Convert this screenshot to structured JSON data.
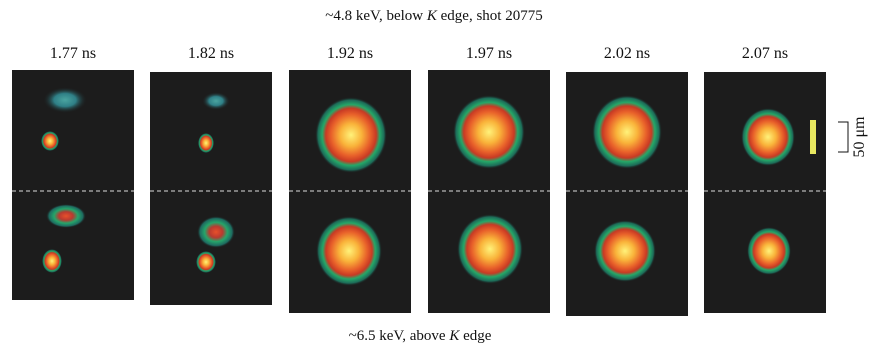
{
  "figure": {
    "top_caption": {
      "before": "~4.8 keV, below ",
      "italic": "K",
      "after": " edge, shot 20775"
    },
    "bottom_caption": {
      "before": "~6.5 keV, above ",
      "italic": "K",
      "after": " edge"
    },
    "panels": [
      {
        "label": "1.77 ns"
      },
      {
        "label": "1.82 ns"
      },
      {
        "label": "1.92 ns"
      },
      {
        "label": "1.97 ns"
      },
      {
        "label": "2.02 ns"
      },
      {
        "label": "2.07 ns"
      }
    ],
    "scale_bar": "50 μm"
  }
}
